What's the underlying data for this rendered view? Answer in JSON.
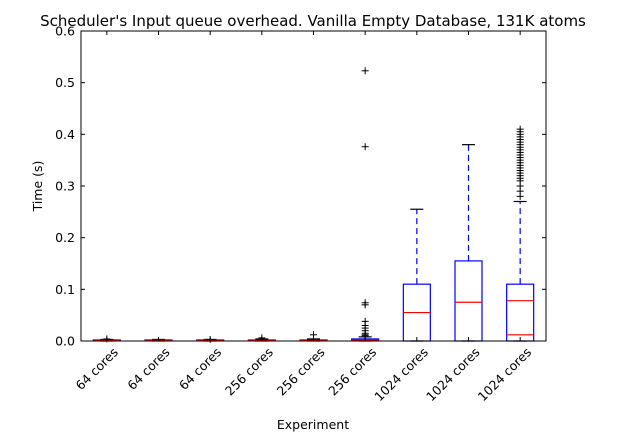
{
  "chart_data": {
    "type": "boxplot",
    "title": "Scheduler's Input queue overhead. Vanilla Empty Database, 131K atoms",
    "xlabel": "Experiment",
    "ylabel": "Time (s)",
    "ylim": [
      0,
      0.6
    ],
    "yticks": [
      "0.0",
      "0.1",
      "0.2",
      "0.3",
      "0.4",
      "0.5",
      "0.6"
    ],
    "grid": false,
    "colors": {
      "box": "#0000ff",
      "median": "#ff0000",
      "whisker": "#0000ff",
      "cap": "#000000",
      "flier": "#000000"
    },
    "categories": [
      "64 cores",
      "64 cores",
      "64 cores",
      "256 cores",
      "256 cores",
      "256 cores",
      "1024 cores",
      "1024 cores",
      "1024 cores"
    ],
    "boxes": [
      {
        "q1": 0.0005,
        "median": 0.001,
        "q3": 0.002,
        "whislo": 0.0,
        "whishi": 0.003,
        "fliers": [
          0.004
        ]
      },
      {
        "q1": 0.0005,
        "median": 0.001,
        "q3": 0.002,
        "whislo": 0.0,
        "whishi": 0.003,
        "fliers": []
      },
      {
        "q1": 0.0005,
        "median": 0.001,
        "q3": 0.002,
        "whislo": 0.0,
        "whishi": 0.003,
        "fliers": [
          0.003
        ]
      },
      {
        "q1": 0.0005,
        "median": 0.001,
        "q3": 0.002,
        "whislo": 0.0,
        "whishi": 0.004,
        "fliers": [
          0.006
        ]
      },
      {
        "q1": 0.0005,
        "median": 0.001,
        "q3": 0.002,
        "whislo": 0.0,
        "whishi": 0.004,
        "fliers": [
          0.012
        ]
      },
      {
        "q1": 0.0005,
        "median": 0.002,
        "q3": 0.004,
        "whislo": 0.0,
        "whishi": 0.008,
        "fliers": [
          0.01,
          0.012,
          0.015,
          0.02,
          0.025,
          0.03,
          0.038,
          0.07,
          0.074,
          0.376,
          0.523
        ]
      },
      {
        "q1": 0.0,
        "median": 0.055,
        "q3": 0.11,
        "whislo": 0.0,
        "whishi": 0.255,
        "fliers": []
      },
      {
        "q1": 0.0,
        "median": 0.075,
        "q3": 0.155,
        "whislo": 0.0,
        "whishi": 0.38,
        "fliers": []
      },
      {
        "q1": 0.0,
        "median": 0.078,
        "q3": 0.11,
        "whislo": 0.0,
        "whishi": 0.27,
        "fliers": [
          0.28,
          0.29,
          0.3,
          0.31,
          0.315,
          0.32,
          0.325,
          0.33,
          0.335,
          0.34,
          0.345,
          0.35,
          0.355,
          0.36,
          0.365,
          0.37,
          0.375,
          0.38,
          0.385,
          0.39,
          0.395,
          0.4,
          0.405,
          0.41
        ]
      }
    ],
    "extra_lines": [
      {
        "box_index": 8,
        "y": 0.012
      }
    ]
  }
}
